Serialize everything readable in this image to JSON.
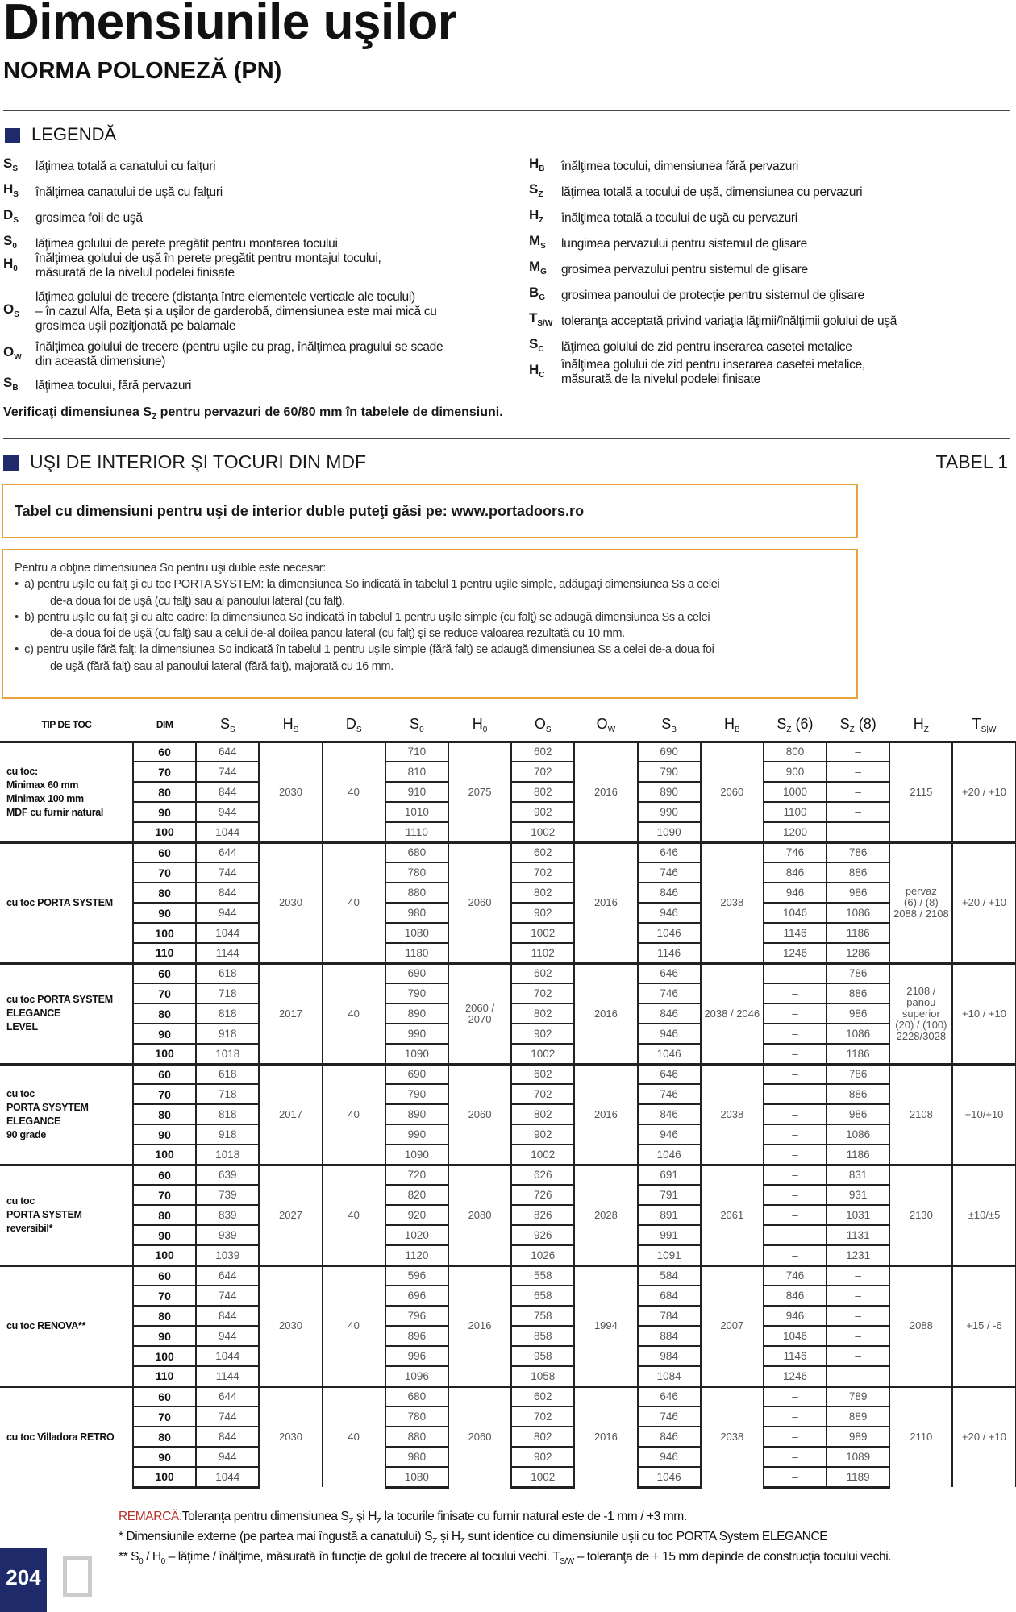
{
  "header": {
    "title": "Dimensiunile uşilor",
    "subtitle": "NORMA POLONEZĂ (PN)"
  },
  "legend": {
    "title": "LEGENDĂ",
    "left": [
      {
        "sym": "S",
        "sub": "S",
        "text": "lăţimea totală a canatului cu falţuri"
      },
      {
        "sym": "H",
        "sub": "S",
        "text": "înălţimea canatului de uşă cu falţuri"
      },
      {
        "sym": "D",
        "sub": "S",
        "text": "grosimea foii de uşă"
      },
      {
        "sym": "S",
        "sub": "0",
        "text": "lăţimea golului de perete pregătit pentru montarea tocului"
      },
      {
        "sym": "H",
        "sub": "0",
        "text": "înălţimea golului de uşă în perete pregătit pentru montajul tocului,\nmăsurată de la nivelul podelei finisate"
      },
      {
        "sym": "O",
        "sub": "S",
        "text": "lăţimea golului de trecere (distanţa între elementele verticale ale tocului)\n– în cazul Alfa, Beta şi a uşilor de garderobă, dimensiunea este mai mică cu\ngrosimea uşii poziţionată pe balamale"
      },
      {
        "sym": "O",
        "sub": "W",
        "text": "înălţimea golului de trecere (pentru uşile cu prag, înălţimea pragului se scade\ndin această dimensiune)"
      },
      {
        "sym": "S",
        "sub": "B",
        "text": "lăţimea tocului, fără pervazuri"
      }
    ],
    "right": [
      {
        "sym": "H",
        "sub": "B",
        "text": "înălţimea tocului, dimensiunea fără pervazuri"
      },
      {
        "sym": "S",
        "sub": "Z",
        "text": "lăţimea totală a tocului de uşă, dimensiunea cu pervazuri"
      },
      {
        "sym": "H",
        "sub": "Z",
        "text": "înălţimea totală a tocului de uşă cu pervazuri"
      },
      {
        "sym": "M",
        "sub": "S",
        "text": "lungimea pervazului pentru sistemul de glisare"
      },
      {
        "sym": "M",
        "sub": "G",
        "text": "grosimea pervazului pentru sistemul de glisare"
      },
      {
        "sym": "B",
        "sub": "G",
        "text": "grosimea panoului de protecţie pentru sistemul de glisare"
      },
      {
        "sym": "T",
        "sub": "S/W",
        "text": "toleranţa acceptată privind variaţia lăţimii/înălţimii golului de uşă"
      },
      {
        "sym": "S",
        "sub": "C",
        "text": "lăţimea golului de zid pentru inserarea casetei metalice"
      },
      {
        "sym": "H",
        "sub": "C",
        "text": "înălţimea golului de zid pentru inserarea casetei metalice,\nmăsurată de la nivelul podelei finisate"
      }
    ],
    "verify": {
      "a": "Verificaţi dimensiunea S",
      "sub": "Z",
      "b": " pentru pervazuri de 60/80 mm în tabelele de dimensiuni."
    }
  },
  "section": {
    "title": "UŞI DE INTERIOR ŞI TOCURI DIN MDF",
    "table_label": "TABEL 1"
  },
  "box1": "Tabel cu dimensiuni pentru uşi de interior duble puteţi găsi pe: www.portadoors.ro",
  "box2": {
    "intro": "Pentru a obţine dimensiunea So pentru uşi duble este necesar:",
    "items": [
      {
        "l1": "a) pentru uşile cu falţ şi cu toc PORTA SYSTEM: la dimensiunea So indicată în tabelul 1 pentru uşile simple, adăugaţi dimensiunea Ss a celei",
        "l2": "de-a doua foi de uşă (cu falţ) sau al panoului lateral (cu falţ)."
      },
      {
        "l1": "b) pentru uşile cu falţ şi cu alte cadre: la dimensiunea So indicată în tabelul 1 pentru uşile simple (cu falţ) se adaugă dimensiunea Ss a celei",
        "l2": "de-a doua foi de uşă (cu falţ) sau a celui de-al doilea panou lateral (cu falţ) şi se reduce valoarea rezultată cu 10 mm."
      },
      {
        "l1": "c) pentru uşile fără falţ: la dimensiunea So indicată în tabelul 1 pentru uşile simple (fără falţ) se adaugă dimensiunea Ss a celei de-a doua foi",
        "l2": "de uşă (fără falţ) sau al panoului lateral (fără falţ), majorată cu 16 mm."
      }
    ]
  },
  "table": {
    "headers": [
      {
        "main": "TIP DE TOC",
        "sub": "",
        "suffix": ""
      },
      {
        "main": "DIM",
        "sub": "",
        "suffix": ""
      },
      {
        "main": "S",
        "sub": "S",
        "suffix": ""
      },
      {
        "main": "H",
        "sub": "S",
        "suffix": ""
      },
      {
        "main": "D",
        "sub": "S",
        "suffix": ""
      },
      {
        "main": "S",
        "sub": "0",
        "suffix": ""
      },
      {
        "main": "H",
        "sub": "0",
        "suffix": ""
      },
      {
        "main": "O",
        "sub": "S",
        "suffix": ""
      },
      {
        "main": "O",
        "sub": "W",
        "suffix": ""
      },
      {
        "main": "S",
        "sub": "B",
        "suffix": ""
      },
      {
        "main": "H",
        "sub": "B",
        "suffix": ""
      },
      {
        "main": "S",
        "sub": "Z",
        "suffix": " (6)"
      },
      {
        "main": "S",
        "sub": "Z",
        "suffix": " (8)"
      },
      {
        "main": "H",
        "sub": "Z",
        "suffix": ""
      },
      {
        "main": "T",
        "sub": "S|W",
        "suffix": ""
      }
    ],
    "row_fields": [
      "DIM",
      "SS",
      "S0",
      "OS",
      "SB",
      "SZ6",
      "SZ8"
    ],
    "groups": [
      {
        "name": "cu toc:\nMinimax 60 mm\nMinimax 100 mm\nMDF cu furnir natural",
        "hs": "2030",
        "ds": "40",
        "h0": "2075",
        "ow": "2016",
        "hb": "2060",
        "hz": "2115",
        "t": "+20 / +10",
        "rows": [
          [
            "60",
            "644",
            "710",
            "602",
            "690",
            "800",
            "–"
          ],
          [
            "70",
            "744",
            "810",
            "702",
            "790",
            "900",
            "–"
          ],
          [
            "80",
            "844",
            "910",
            "802",
            "890",
            "1000",
            "–"
          ],
          [
            "90",
            "944",
            "1010",
            "902",
            "990",
            "1100",
            "–"
          ],
          [
            "100",
            "1044",
            "1110",
            "1002",
            "1090",
            "1200",
            "–"
          ]
        ]
      },
      {
        "name": "cu toc PORTA SYSTEM",
        "hs": "2030",
        "ds": "40",
        "h0": "2060",
        "ow": "2016",
        "hb": "2038",
        "hz": "pervaz\n(6) / (8)\n2088 / 2108",
        "t": "+20 / +10",
        "rows": [
          [
            "60",
            "644",
            "680",
            "602",
            "646",
            "746",
            "786"
          ],
          [
            "70",
            "744",
            "780",
            "702",
            "746",
            "846",
            "886"
          ],
          [
            "80",
            "844",
            "880",
            "802",
            "846",
            "946",
            "986"
          ],
          [
            "90",
            "944",
            "980",
            "902",
            "946",
            "1046",
            "1086"
          ],
          [
            "100",
            "1044",
            "1080",
            "1002",
            "1046",
            "1146",
            "1186"
          ],
          [
            "110",
            "1144",
            "1180",
            "1102",
            "1146",
            "1246",
            "1286"
          ]
        ]
      },
      {
        "name": "cu toc PORTA SYSTEM\nELEGANCE\nLEVEL",
        "hs": "2017",
        "ds": "40",
        "h0": "2060 /\n2070",
        "ow": "2016",
        "hb": "2038 / 2046",
        "hz": "2108 /\npanou\nsuperior\n(20) / (100)\n2228/3028",
        "t": "+10 / +10",
        "rows": [
          [
            "60",
            "618",
            "690",
            "602",
            "646",
            "–",
            "786"
          ],
          [
            "70",
            "718",
            "790",
            "702",
            "746",
            "–",
            "886"
          ],
          [
            "80",
            "818",
            "890",
            "802",
            "846",
            "–",
            "986"
          ],
          [
            "90",
            "918",
            "990",
            "902",
            "946",
            "–",
            "1086"
          ],
          [
            "100",
            "1018",
            "1090",
            "1002",
            "1046",
            "–",
            "1186"
          ]
        ]
      },
      {
        "name": "cu toc\nPORTA SYSYTEM\nELEGANCE\n90 grade",
        "hs": "2017",
        "ds": "40",
        "h0": "2060",
        "ow": "2016",
        "hb": "2038",
        "hz": "2108",
        "t": "+10/+10",
        "rows": [
          [
            "60",
            "618",
            "690",
            "602",
            "646",
            "–",
            "786"
          ],
          [
            "70",
            "718",
            "790",
            "702",
            "746",
            "–",
            "886"
          ],
          [
            "80",
            "818",
            "890",
            "802",
            "846",
            "–",
            "986"
          ],
          [
            "90",
            "918",
            "990",
            "902",
            "946",
            "–",
            "1086"
          ],
          [
            "100",
            "1018",
            "1090",
            "1002",
            "1046",
            "–",
            "1186"
          ]
        ]
      },
      {
        "name": "cu toc\nPORTA SYSTEM\nreversibil*",
        "hs": "2027",
        "ds": "40",
        "h0": "2080",
        "ow": "2028",
        "hb": "2061",
        "hz": "2130",
        "t": "±10/±5",
        "rows": [
          [
            "60",
            "639",
            "720",
            "626",
            "691",
            "–",
            "831"
          ],
          [
            "70",
            "739",
            "820",
            "726",
            "791",
            "–",
            "931"
          ],
          [
            "80",
            "839",
            "920",
            "826",
            "891",
            "–",
            "1031"
          ],
          [
            "90",
            "939",
            "1020",
            "926",
            "991",
            "–",
            "1131"
          ],
          [
            "100",
            "1039",
            "1120",
            "1026",
            "1091",
            "–",
            "1231"
          ]
        ]
      },
      {
        "name": "cu toc RENOVA**",
        "hs": "2030",
        "ds": "40",
        "h0": "2016",
        "ow": "1994",
        "hb": "2007",
        "hz": "2088",
        "t": "+15 / -6",
        "rows": [
          [
            "60",
            "644",
            "596",
            "558",
            "584",
            "746",
            "–"
          ],
          [
            "70",
            "744",
            "696",
            "658",
            "684",
            "846",
            "–"
          ],
          [
            "80",
            "844",
            "796",
            "758",
            "784",
            "946",
            "–"
          ],
          [
            "90",
            "944",
            "896",
            "858",
            "884",
            "1046",
            "–"
          ],
          [
            "100",
            "1044",
            "996",
            "958",
            "984",
            "1146",
            "–"
          ],
          [
            "110",
            "1144",
            "1096",
            "1058",
            "1084",
            "1246",
            "–"
          ]
        ]
      },
      {
        "name": "cu toc Villadora RETRO",
        "hs": "2030",
        "ds": "40",
        "h0": "2060",
        "ow": "2016",
        "hb": "2038",
        "hz": "2110",
        "t": "+20 / +10",
        "rows": [
          [
            "60",
            "644",
            "680",
            "602",
            "646",
            "–",
            "789"
          ],
          [
            "70",
            "744",
            "780",
            "702",
            "746",
            "–",
            "889"
          ],
          [
            "80",
            "844",
            "880",
            "802",
            "846",
            "–",
            "989"
          ],
          [
            "90",
            "944",
            "980",
            "902",
            "946",
            "–",
            "1089"
          ],
          [
            "100",
            "1044",
            "1080",
            "1002",
            "1046",
            "–",
            "1189"
          ]
        ]
      }
    ]
  },
  "notes": {
    "remark_label": "REMARCĂ:",
    "n1": [
      "Toleranţa pentru dimensiunea S",
      "Z",
      " şi H",
      "Z",
      " la tocurile finisate cu furnir natural este de -1 mm / +3 mm."
    ],
    "n2": [
      "* Dimensiunile externe (pe partea mai îngustă a canatului) S",
      "Z",
      " şi H",
      "Z",
      " sunt identice cu dimensiunile uşii cu toc PORTA System ELEGANCE"
    ],
    "n3": [
      "** S",
      "0",
      " / H",
      "0",
      " – lăţime / înălţime, măsurată în funcţie de golul de trecere al tocului vechi. T",
      "S/W",
      " – toleranţa de + 15 mm depinde de construcţia tocului vechi."
    ]
  },
  "footer": {
    "page_number": "204",
    "logo": "P"
  },
  "colors": {
    "navy": "#1f2a6b",
    "orange": "#e8a33c",
    "remark_red": "#b5332a"
  }
}
